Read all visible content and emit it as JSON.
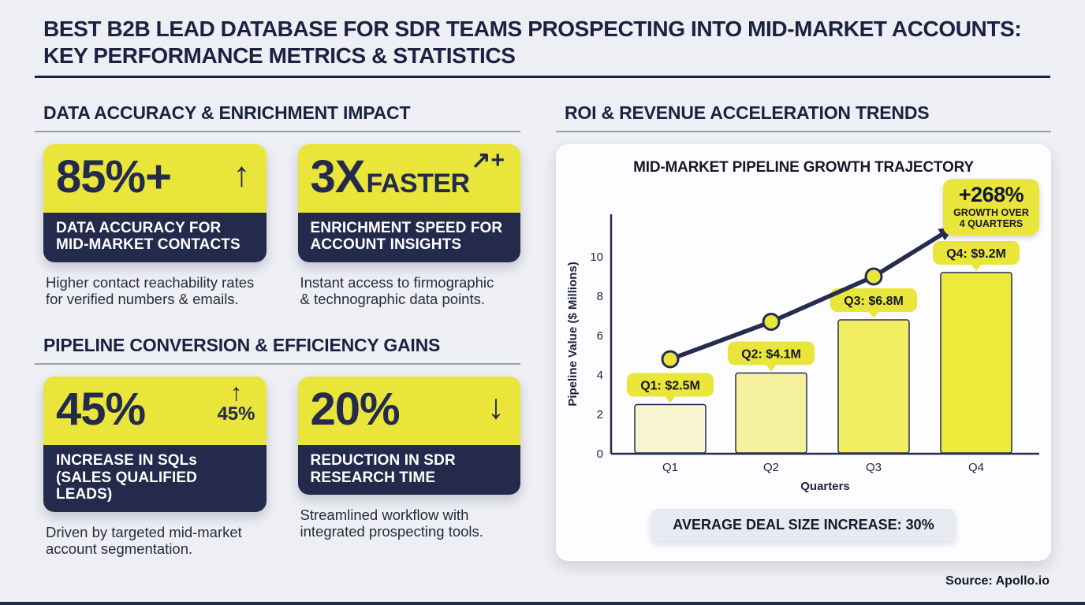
{
  "header": {
    "title_line1": "BEST B2B LEAD DATABASE FOR SDR TEAMS PROSPECTING INTO MID-MARKET ACCOUNTS:",
    "title_line2": "KEY PERFORMANCE METRICS & STATISTICS"
  },
  "colors": {
    "accent_yellow": "#E9E53B",
    "navy": "#242A4C",
    "heading_navy": "#1B2140",
    "background": "#EDEFF4",
    "rule_gray": "#97A0B0",
    "bar_colors": [
      "#F8F6D0",
      "#F4F0A0",
      "#F2EE62",
      "#EEEA3C"
    ]
  },
  "sections": {
    "data_accuracy": {
      "heading": "DATA ACCURACY & ENRICHMENT IMPACT",
      "cards": [
        {
          "value": "85%+",
          "icon_glyph": "↑",
          "icon_name": "arrow-up",
          "label_line1": "DATA ACCURACY FOR",
          "label_line2": "MID-MARKET CONTACTS",
          "desc_line1": "Higher contact reachability rates",
          "desc_line2": "for verified numbers & emails."
        },
        {
          "value": "3X",
          "value_suffix": "FASTER",
          "icon_glyph": "↗+",
          "icon_name": "arrow-up-right-plus",
          "label_line1": "ENRICHMENT SPEED FOR",
          "label_line2": "ACCOUNT INSIGHTS",
          "desc_line1": "Instant access to firmographic",
          "desc_line2": "& technographic data points."
        }
      ]
    },
    "pipeline_conversion": {
      "heading": "PIPELINE CONVERSION & EFFICIENCY GAINS",
      "cards": [
        {
          "value": "45%",
          "icon_glyph": "↑",
          "icon_caption": "45%",
          "icon_name": "arrow-up",
          "label_line1": "INCREASE IN SQLs",
          "label_line2": "(SALES QUALIFIED LEADS)",
          "desc_line1": "Driven by targeted mid-market",
          "desc_line2": "account segmentation."
        },
        {
          "value": "20%",
          "icon_glyph": "↓",
          "icon_name": "arrow-down",
          "label_line1": "REDUCTION IN SDR",
          "label_line2": "RESEARCH TIME",
          "desc_line1": "Streamlined workflow with",
          "desc_line2": "integrated prospecting tools."
        }
      ]
    },
    "roi": {
      "heading": "ROI & REVENUE ACCELERATION TRENDS"
    }
  },
  "chart_data": {
    "type": "bar",
    "title": "MID-MARKET PIPELINE GROWTH TRAJECTORY",
    "categories": [
      "Q1",
      "Q2",
      "Q3",
      "Q4"
    ],
    "series": [
      {
        "name": "Pipeline Value",
        "type": "bar",
        "values": [
          2.5,
          4.1,
          6.8,
          9.2
        ],
        "labels": [
          "Q1: $2.5M",
          "Q2: $4.1M",
          "Q3: $6.8M",
          "Q4: $9.2M"
        ]
      },
      {
        "name": "Growth trend",
        "type": "line",
        "values": [
          4.8,
          6.7,
          9.0,
          null
        ],
        "arrow_extends_to_annotation": true
      }
    ],
    "xlabel": "Quarters",
    "ylabel": "Pipeline Value ($ Millions)",
    "ylim": [
      0,
      12
    ],
    "yticks": [
      0,
      2,
      4,
      6,
      8,
      10
    ],
    "grid": false,
    "annotation": {
      "value": "+268%",
      "line1": "GROWTH OVER",
      "line2": "4 QUARTERS"
    },
    "footer_banner": "AVERAGE DEAL SIZE INCREASE: 30%"
  },
  "footer": {
    "source": "Source: Apollo.io"
  }
}
